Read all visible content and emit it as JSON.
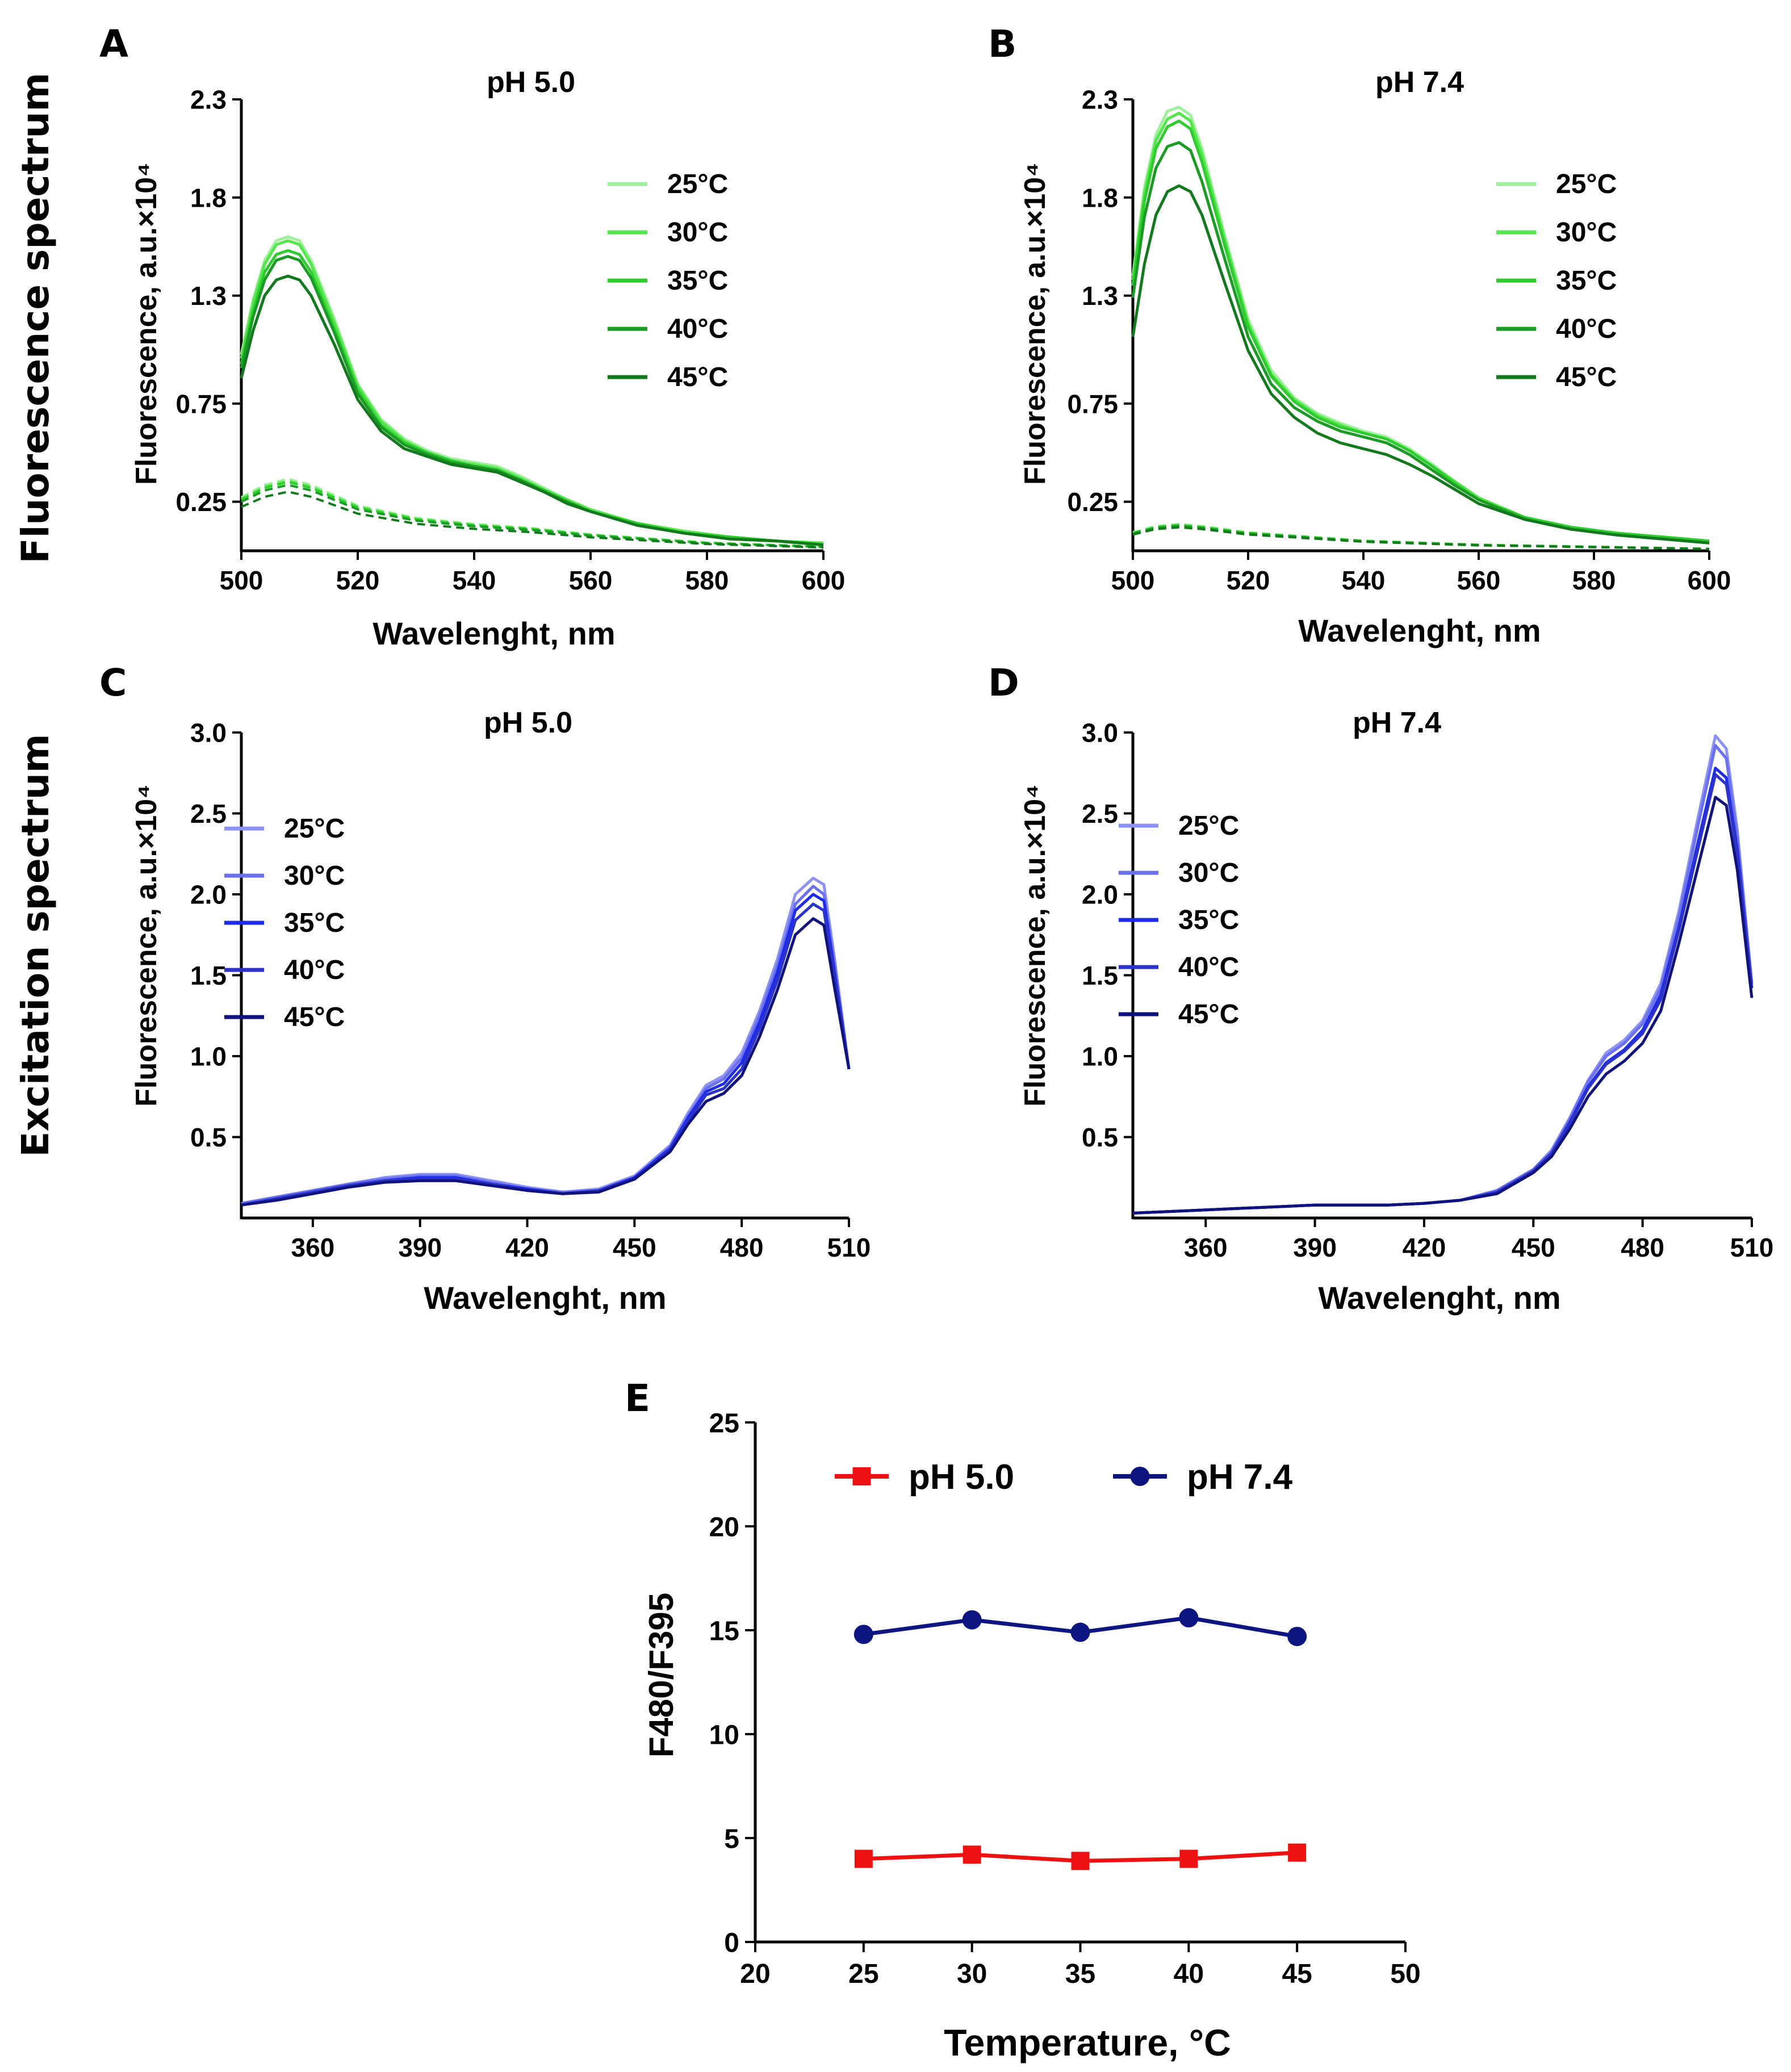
{
  "row_labels": {
    "emission": "Fluorescence spectrum",
    "excitation": "Excitation spectrum"
  },
  "colors": {
    "green": [
      "#9ef09a",
      "#55e64e",
      "#2fcc2f",
      "#1a9c24",
      "#127a1c"
    ],
    "blue": [
      "#8d93f5",
      "#6a70ee",
      "#1d2bea",
      "#2b33c8",
      "#10127e"
    ],
    "red": "#ee1111",
    "navy": "#0d1580"
  },
  "chart_data": [
    {
      "panel": "A",
      "type": "line",
      "title": "pH 5.0",
      "xlabel": "Wavelenght, nm",
      "ylabel": "Fluorescence, a.u.×10⁴",
      "xlim": [
        500,
        600
      ],
      "ylim": [
        0,
        2.3
      ],
      "xticks": [
        500,
        520,
        540,
        560,
        580,
        600
      ],
      "yticks": [
        0.25,
        0.75,
        1.3,
        1.8,
        2.3
      ],
      "x": [
        500,
        502,
        504,
        506,
        508,
        510,
        512,
        516,
        520,
        524,
        528,
        532,
        536,
        540,
        544,
        548,
        552,
        556,
        560,
        568,
        576,
        584,
        592,
        600
      ],
      "series": [
        {
          "name": "25°C",
          "values": [
            1.0,
            1.28,
            1.48,
            1.58,
            1.6,
            1.58,
            1.48,
            1.18,
            0.85,
            0.67,
            0.57,
            0.51,
            0.47,
            0.45,
            0.43,
            0.38,
            0.32,
            0.26,
            0.21,
            0.14,
            0.1,
            0.07,
            0.05,
            0.04
          ]
        },
        {
          "name": "30°C",
          "values": [
            0.98,
            1.26,
            1.46,
            1.56,
            1.58,
            1.56,
            1.46,
            1.16,
            0.84,
            0.66,
            0.56,
            0.5,
            0.46,
            0.44,
            0.42,
            0.37,
            0.31,
            0.26,
            0.21,
            0.14,
            0.1,
            0.07,
            0.05,
            0.04
          ]
        },
        {
          "name": "35°C",
          "values": [
            0.95,
            1.22,
            1.42,
            1.51,
            1.53,
            1.51,
            1.42,
            1.13,
            0.82,
            0.64,
            0.55,
            0.5,
            0.46,
            0.43,
            0.41,
            0.36,
            0.31,
            0.25,
            0.2,
            0.14,
            0.09,
            0.07,
            0.05,
            0.03
          ]
        },
        {
          "name": "40°C",
          "values": [
            0.93,
            1.19,
            1.38,
            1.48,
            1.5,
            1.48,
            1.39,
            1.11,
            0.8,
            0.63,
            0.54,
            0.49,
            0.45,
            0.43,
            0.41,
            0.36,
            0.3,
            0.25,
            0.2,
            0.13,
            0.09,
            0.06,
            0.05,
            0.03
          ]
        },
        {
          "name": "45°C",
          "values": [
            0.88,
            1.12,
            1.3,
            1.38,
            1.4,
            1.38,
            1.3,
            1.05,
            0.77,
            0.61,
            0.52,
            0.48,
            0.44,
            0.42,
            0.4,
            0.35,
            0.3,
            0.24,
            0.2,
            0.13,
            0.09,
            0.06,
            0.05,
            0.03
          ]
        }
      ],
      "dashed": {
        "x": [
          500,
          504,
          508,
          512,
          520,
          530,
          540,
          550,
          560,
          580,
          600
        ],
        "values": [
          0.26,
          0.32,
          0.35,
          0.32,
          0.22,
          0.16,
          0.13,
          0.11,
          0.08,
          0.04,
          0.02
        ],
        "scales": [
          1.05,
          1.02,
          1.0,
          0.96,
          0.86
        ]
      }
    },
    {
      "panel": "B",
      "type": "line",
      "title": "pH 7.4",
      "xlabel": "Wavelenght, nm",
      "ylabel": "Fluorescence, a.u.×10⁴",
      "xlim": [
        500,
        600
      ],
      "ylim": [
        0,
        2.3
      ],
      "xticks": [
        500,
        520,
        540,
        560,
        580,
        600
      ],
      "yticks": [
        0.25,
        0.75,
        1.3,
        1.8,
        2.3
      ],
      "x": [
        500,
        502,
        504,
        506,
        508,
        510,
        512,
        516,
        520,
        524,
        528,
        532,
        536,
        540,
        544,
        548,
        552,
        556,
        560,
        568,
        576,
        584,
        592,
        600
      ],
      "series": [
        {
          "name": "25°C",
          "values": [
            1.4,
            1.85,
            2.12,
            2.24,
            2.26,
            2.22,
            2.05,
            1.6,
            1.18,
            0.92,
            0.78,
            0.7,
            0.65,
            0.61,
            0.58,
            0.52,
            0.44,
            0.35,
            0.27,
            0.17,
            0.12,
            0.09,
            0.07,
            0.05
          ]
        },
        {
          "name": "30°C",
          "values": [
            1.38,
            1.82,
            2.09,
            2.2,
            2.23,
            2.19,
            2.02,
            1.58,
            1.16,
            0.9,
            0.77,
            0.69,
            0.64,
            0.6,
            0.57,
            0.51,
            0.43,
            0.35,
            0.27,
            0.17,
            0.12,
            0.09,
            0.07,
            0.05
          ]
        },
        {
          "name": "35°C",
          "values": [
            1.35,
            1.78,
            2.05,
            2.16,
            2.19,
            2.15,
            1.98,
            1.55,
            1.14,
            0.89,
            0.76,
            0.68,
            0.63,
            0.6,
            0.57,
            0.51,
            0.43,
            0.34,
            0.26,
            0.17,
            0.12,
            0.09,
            0.07,
            0.05
          ]
        },
        {
          "name": "40°C",
          "values": [
            1.29,
            1.7,
            1.95,
            2.06,
            2.08,
            2.04,
            1.88,
            1.48,
            1.09,
            0.85,
            0.73,
            0.66,
            0.61,
            0.58,
            0.55,
            0.49,
            0.41,
            0.33,
            0.26,
            0.16,
            0.11,
            0.08,
            0.06,
            0.04
          ]
        },
        {
          "name": "45°C",
          "values": [
            1.09,
            1.46,
            1.71,
            1.83,
            1.86,
            1.83,
            1.71,
            1.36,
            1.02,
            0.8,
            0.68,
            0.6,
            0.55,
            0.52,
            0.49,
            0.44,
            0.38,
            0.31,
            0.24,
            0.16,
            0.11,
            0.08,
            0.06,
            0.04
          ]
        }
      ],
      "dashed": {
        "x": [
          500,
          504,
          508,
          512,
          520,
          530,
          540,
          550,
          560,
          580,
          600
        ],
        "values": [
          0.09,
          0.12,
          0.13,
          0.12,
          0.09,
          0.07,
          0.05,
          0.04,
          0.03,
          0.02,
          0.01
        ],
        "scales": [
          1.05,
          1.02,
          1.0,
          0.97,
          0.92
        ]
      }
    },
    {
      "panel": "C",
      "type": "line",
      "title": "pH 5.0",
      "xlabel": "Wavelenght, nm",
      "ylabel": "Fluorescence, a.u.×10⁴",
      "xlim": [
        340,
        510
      ],
      "ylim": [
        0,
        3.0
      ],
      "xticks": [
        360,
        390,
        420,
        450,
        480,
        510
      ],
      "yticks": [
        0.5,
        1.0,
        1.5,
        2.0,
        2.5,
        3.0
      ],
      "x": [
        340,
        350,
        360,
        370,
        380,
        390,
        400,
        410,
        420,
        430,
        440,
        450,
        460,
        465,
        470,
        475,
        480,
        485,
        490,
        495,
        500,
        503,
        506,
        510
      ],
      "series": [
        {
          "name": "25°C",
          "values": [
            0.09,
            0.13,
            0.17,
            0.21,
            0.25,
            0.27,
            0.27,
            0.23,
            0.19,
            0.16,
            0.18,
            0.26,
            0.45,
            0.65,
            0.82,
            0.88,
            1.02,
            1.28,
            1.6,
            2.0,
            2.1,
            2.06,
            1.6,
            0.92
          ]
        },
        {
          "name": "30°C",
          "values": [
            0.09,
            0.13,
            0.17,
            0.21,
            0.24,
            0.26,
            0.26,
            0.22,
            0.18,
            0.16,
            0.17,
            0.25,
            0.44,
            0.63,
            0.8,
            0.86,
            0.99,
            1.25,
            1.56,
            1.94,
            2.05,
            2.0,
            1.56,
            0.92
          ]
        },
        {
          "name": "35°C",
          "values": [
            0.08,
            0.12,
            0.16,
            0.2,
            0.23,
            0.25,
            0.25,
            0.21,
            0.18,
            0.15,
            0.17,
            0.25,
            0.43,
            0.62,
            0.78,
            0.83,
            0.96,
            1.21,
            1.52,
            1.9,
            2.0,
            1.96,
            1.52,
            0.92
          ]
        },
        {
          "name": "40°C",
          "values": [
            0.08,
            0.12,
            0.16,
            0.2,
            0.23,
            0.24,
            0.24,
            0.21,
            0.17,
            0.15,
            0.17,
            0.24,
            0.42,
            0.6,
            0.76,
            0.8,
            0.92,
            1.17,
            1.47,
            1.84,
            1.94,
            1.9,
            1.49,
            0.92
          ]
        },
        {
          "name": "45°C",
          "values": [
            0.08,
            0.11,
            0.15,
            0.19,
            0.22,
            0.23,
            0.23,
            0.2,
            0.17,
            0.15,
            0.16,
            0.24,
            0.41,
            0.58,
            0.72,
            0.77,
            0.88,
            1.12,
            1.41,
            1.75,
            1.85,
            1.81,
            1.42,
            0.92
          ]
        }
      ]
    },
    {
      "panel": "D",
      "type": "line",
      "title": "pH 7.4",
      "xlabel": "Wavelenght, nm",
      "ylabel": "Fluorescence, a.u.×10⁴",
      "xlim": [
        340,
        510
      ],
      "ylim": [
        0,
        3.0
      ],
      "xticks": [
        360,
        390,
        420,
        450,
        480,
        510
      ],
      "yticks": [
        0.5,
        1.0,
        1.5,
        2.0,
        2.5,
        3.0
      ],
      "x": [
        340,
        350,
        360,
        370,
        380,
        390,
        400,
        410,
        420,
        430,
        440,
        450,
        455,
        460,
        465,
        470,
        475,
        480,
        485,
        490,
        495,
        500,
        503,
        506,
        510
      ],
      "series": [
        {
          "name": "25°C",
          "values": [
            0.03,
            0.04,
            0.05,
            0.06,
            0.07,
            0.08,
            0.08,
            0.08,
            0.09,
            0.11,
            0.17,
            0.3,
            0.42,
            0.62,
            0.85,
            1.02,
            1.1,
            1.22,
            1.45,
            1.9,
            2.45,
            2.98,
            2.9,
            2.4,
            1.45
          ]
        },
        {
          "name": "30°C",
          "values": [
            0.03,
            0.04,
            0.05,
            0.06,
            0.07,
            0.08,
            0.08,
            0.08,
            0.09,
            0.11,
            0.17,
            0.3,
            0.41,
            0.61,
            0.84,
            1.0,
            1.08,
            1.2,
            1.42,
            1.86,
            2.4,
            2.92,
            2.84,
            2.35,
            1.45
          ]
        },
        {
          "name": "35°C",
          "values": [
            0.03,
            0.04,
            0.05,
            0.06,
            0.07,
            0.08,
            0.08,
            0.08,
            0.09,
            0.11,
            0.16,
            0.29,
            0.4,
            0.59,
            0.81,
            0.96,
            1.04,
            1.16,
            1.38,
            1.8,
            2.3,
            2.78,
            2.72,
            2.28,
            1.42
          ]
        },
        {
          "name": "40°C",
          "values": [
            0.03,
            0.04,
            0.05,
            0.06,
            0.07,
            0.08,
            0.08,
            0.08,
            0.09,
            0.11,
            0.16,
            0.29,
            0.4,
            0.58,
            0.8,
            0.95,
            1.03,
            1.14,
            1.35,
            1.78,
            2.26,
            2.74,
            2.68,
            2.25,
            1.42
          ]
        },
        {
          "name": "45°C",
          "values": [
            0.03,
            0.04,
            0.05,
            0.06,
            0.07,
            0.08,
            0.08,
            0.08,
            0.09,
            0.11,
            0.15,
            0.28,
            0.38,
            0.55,
            0.75,
            0.89,
            0.97,
            1.08,
            1.28,
            1.7,
            2.15,
            2.6,
            2.55,
            2.15,
            1.36
          ]
        }
      ]
    },
    {
      "panel": "E",
      "type": "line",
      "title": "",
      "xlabel": "Temperature, °C",
      "ylabel": "F480/F395",
      "xlim": [
        20,
        50
      ],
      "ylim": [
        0,
        25
      ],
      "xticks": [
        20,
        25,
        30,
        35,
        40,
        45,
        50
      ],
      "yticks": [
        0,
        5,
        10,
        15,
        20,
        25
      ],
      "x": [
        25,
        30,
        35,
        40,
        45
      ],
      "series": [
        {
          "name": "pH 5.0",
          "marker": "square",
          "values": [
            4.0,
            4.2,
            3.9,
            4.0,
            4.3
          ]
        },
        {
          "name": "pH 7.4",
          "marker": "circle",
          "values": [
            14.8,
            15.5,
            14.9,
            15.6,
            14.7
          ]
        }
      ]
    }
  ]
}
